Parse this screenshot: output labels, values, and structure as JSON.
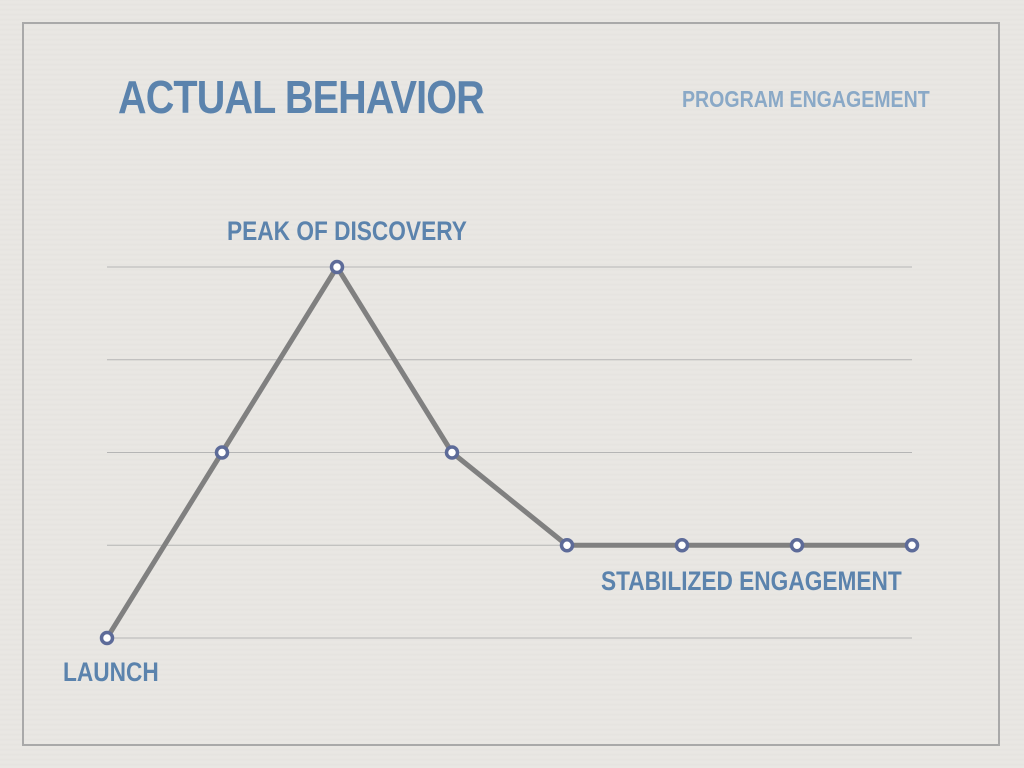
{
  "slide": {
    "title": "ACTUAL BEHAVIOR",
    "subtitle": "PROGRAM ENGAGEMENT"
  },
  "colors": {
    "text_accent": "#5b83ad",
    "subtitle": "#8aa9c7",
    "line": "#808080",
    "marker_stroke": "#5d6b99",
    "marker_fill": "#ffffff",
    "grid": "#b5b5b5",
    "frame": "#a9a9a9"
  },
  "chart_data": {
    "type": "line",
    "title": "",
    "xlabel": "",
    "ylabel": "",
    "grid": true,
    "ylim": [
      0,
      4
    ],
    "x": [
      0,
      1,
      2,
      3,
      4,
      5,
      6,
      7
    ],
    "series": [
      {
        "values": [
          0,
          2,
          4,
          2,
          1,
          1,
          1,
          1
        ]
      }
    ],
    "annotations": [
      {
        "text": "PEAK OF DISCOVERY",
        "x": 2,
        "y": 4
      },
      {
        "text": "STABILIZED ENGAGEMENT",
        "x": 5.5,
        "y": 1
      },
      {
        "text": "LAUNCH",
        "x": 0,
        "y": 0
      }
    ]
  }
}
